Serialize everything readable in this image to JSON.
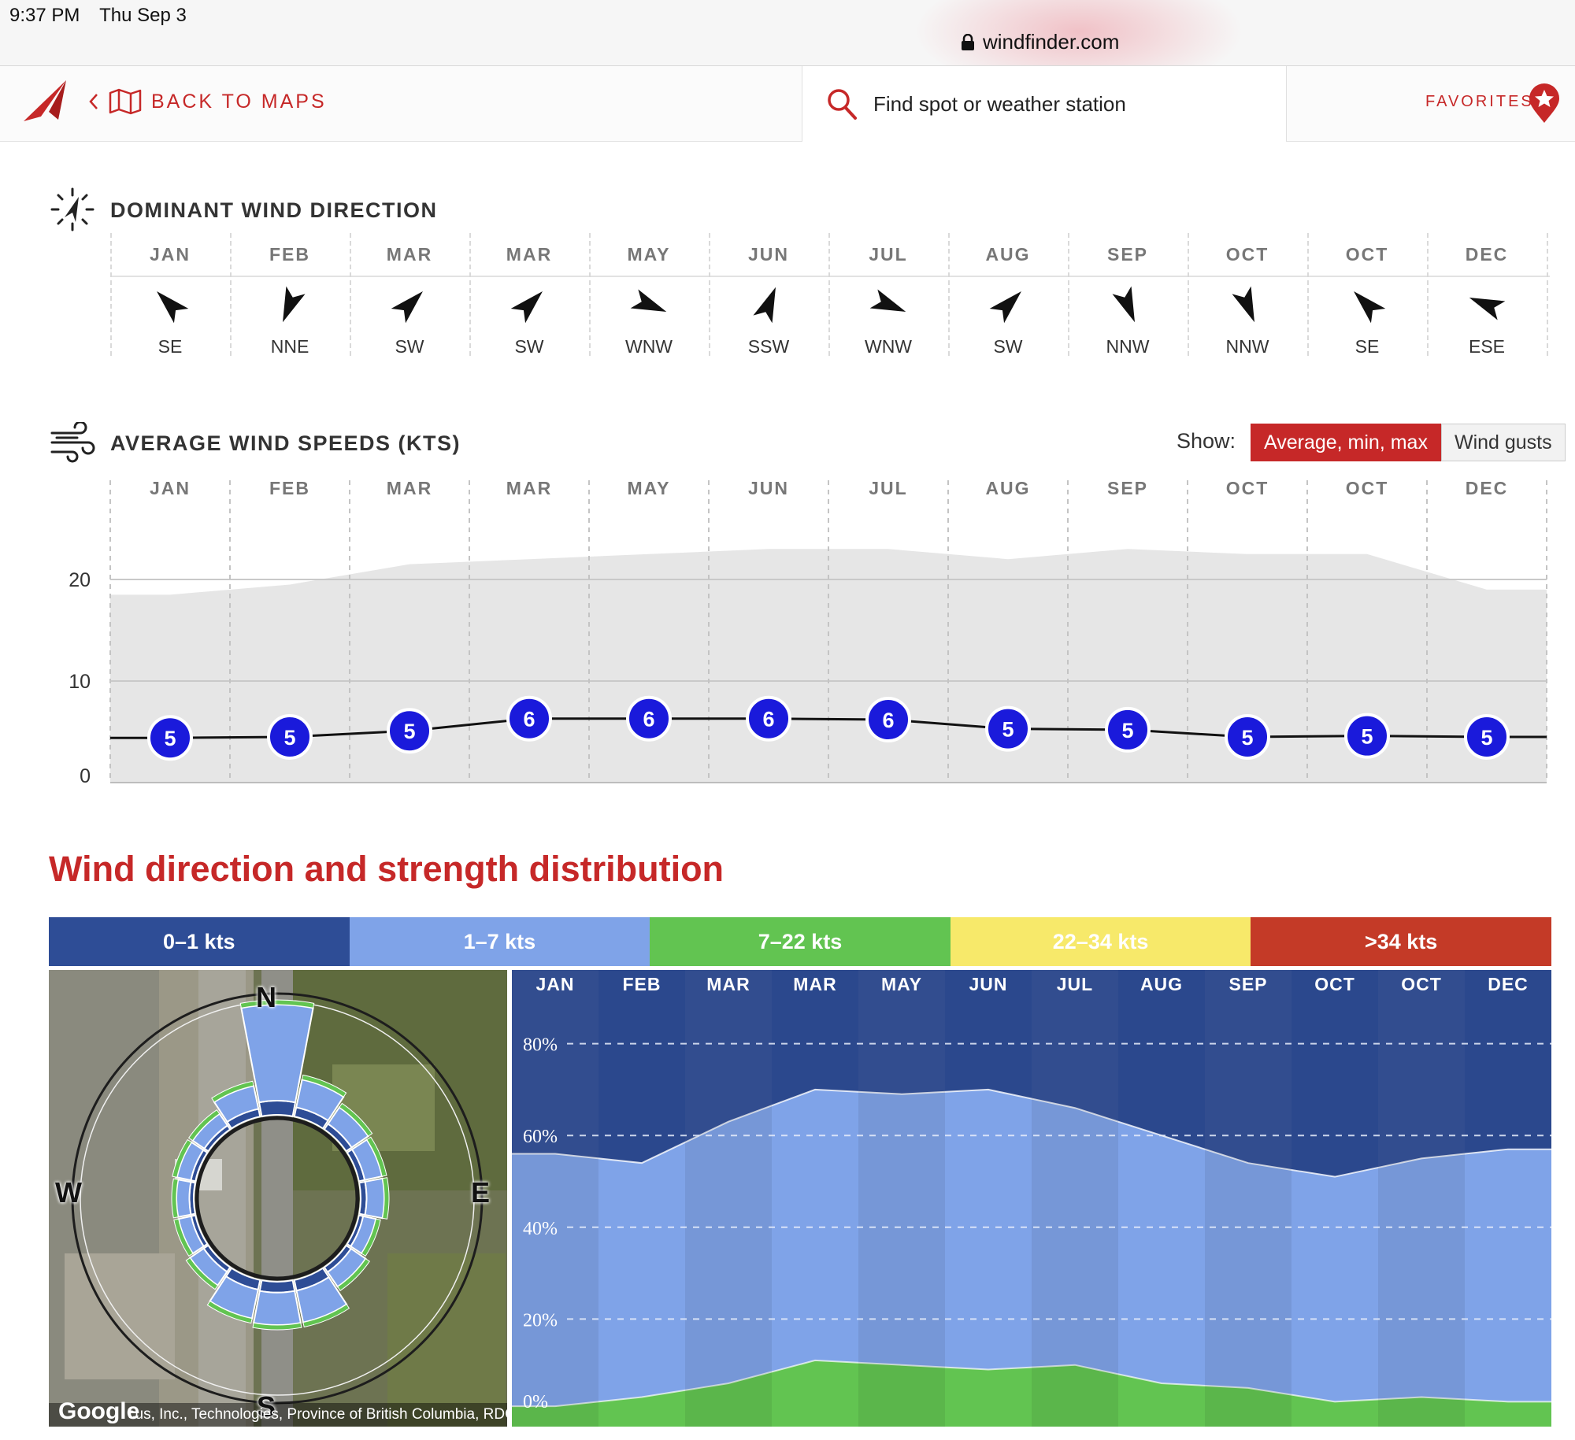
{
  "status": {
    "time": "9:37 PM",
    "date": "Thu Sep 3"
  },
  "browser": {
    "url": "windfinder.com"
  },
  "nav": {
    "back_label": "BACK TO MAPS",
    "search_placeholder": "Find spot or weather station",
    "favorites_label": "FAVORITES"
  },
  "dominant": {
    "title": "DOMINANT WIND DIRECTION",
    "months": [
      {
        "name": "JAN",
        "dir": "SE",
        "deg": 135
      },
      {
        "name": "FEB",
        "dir": "NNE",
        "deg": 22
      },
      {
        "name": "MAR",
        "dir": "SW",
        "deg": 225
      },
      {
        "name": "MAR",
        "dir": "SW",
        "deg": 225
      },
      {
        "name": "MAY",
        "dir": "WNW",
        "deg": 292
      },
      {
        "name": "JUN",
        "dir": "SSW",
        "deg": 202
      },
      {
        "name": "JUL",
        "dir": "WNW",
        "deg": 292
      },
      {
        "name": "AUG",
        "dir": "SW",
        "deg": 225
      },
      {
        "name": "SEP",
        "dir": "NNW",
        "deg": 338
      },
      {
        "name": "OCT",
        "dir": "NNW",
        "deg": 338
      },
      {
        "name": "OCT",
        "dir": "SE",
        "deg": 135
      },
      {
        "name": "DEC",
        "dir": "ESE",
        "deg": 112
      }
    ]
  },
  "speeds": {
    "title": "AVERAGE WIND SPEEDS (KTS)",
    "show_label": "Show:",
    "toggle_active": "Average, min, max",
    "toggle_inactive": "Wind gusts",
    "months": [
      "JAN",
      "FEB",
      "MAR",
      "MAR",
      "MAY",
      "JUN",
      "JUL",
      "AUG",
      "SEP",
      "OCT",
      "OCT",
      "DEC"
    ],
    "y_ticks": [
      "0",
      "10",
      "20"
    ],
    "colors": {
      "dot": "#1a1adb",
      "band": "#e6e6e6",
      "line": "#111111"
    }
  },
  "chart_data": [
    {
      "type": "area",
      "title": "AVERAGE WIND SPEEDS (KTS)",
      "categories": [
        "JAN",
        "FEB",
        "MAR",
        "MAR",
        "MAY",
        "JUN",
        "JUL",
        "AUG",
        "SEP",
        "OCT",
        "OCT",
        "DEC"
      ],
      "ylim": [
        0,
        25
      ],
      "grid": true,
      "series": [
        {
          "name": "Average",
          "values": [
            5,
            5,
            5,
            6,
            6,
            6,
            6,
            5,
            5,
            5,
            5,
            5
          ],
          "plot_values": [
            4.4,
            4.5,
            5.1,
            6.3,
            6.3,
            6.3,
            6.2,
            5.3,
            5.2,
            4.5,
            4.6,
            4.5
          ]
        },
        {
          "name": "max",
          "values": [
            18.5,
            19.5,
            21.5,
            22,
            22.5,
            23,
            23,
            22,
            23,
            22.5,
            22.5,
            19
          ]
        }
      ]
    },
    {
      "type": "area",
      "title": "Wind direction and strength distribution",
      "categories": [
        "JAN",
        "FEB",
        "MAR",
        "MAR",
        "MAY",
        "JUN",
        "JUL",
        "AUG",
        "SEP",
        "OCT",
        "OCT",
        "DEC"
      ],
      "ylim": [
        0,
        100
      ],
      "y_ticks": [
        "0%",
        "20%",
        "40%",
        "60%",
        "80%"
      ],
      "series": [
        {
          "name": "7–22 kts",
          "values": [
            1,
            3,
            6,
            11,
            10,
            9,
            10,
            6,
            5,
            2,
            3,
            2
          ]
        },
        {
          "name": "1–7 kts",
          "values": [
            56,
            54,
            63,
            70,
            69,
            70,
            66,
            60,
            54,
            51,
            55,
            57
          ]
        }
      ]
    }
  ],
  "distribution": {
    "title": "Wind direction and strength distribution",
    "legend": [
      {
        "label": "0–1 kts",
        "color": "#2e4d96"
      },
      {
        "label": "1–7 kts",
        "color": "#7fa3e8"
      },
      {
        "label": "7–22 kts",
        "color": "#62c451"
      },
      {
        "label": ">34 kts",
        "color": "#c43a27"
      }
    ],
    "legend_yellow": {
      "label": "22–34 kts",
      "color": "#f7e96a"
    },
    "months": [
      "JAN",
      "FEB",
      "MAR",
      "MAR",
      "MAY",
      "JUN",
      "JUL",
      "AUG",
      "SEP",
      "OCT",
      "OCT",
      "DEC"
    ]
  },
  "windrose": {
    "compass": [
      "N",
      "E",
      "S",
      "W"
    ],
    "attribution": "cus, Inc., Technologies, Province of British Columbia, RDCO",
    "google": "Google"
  }
}
